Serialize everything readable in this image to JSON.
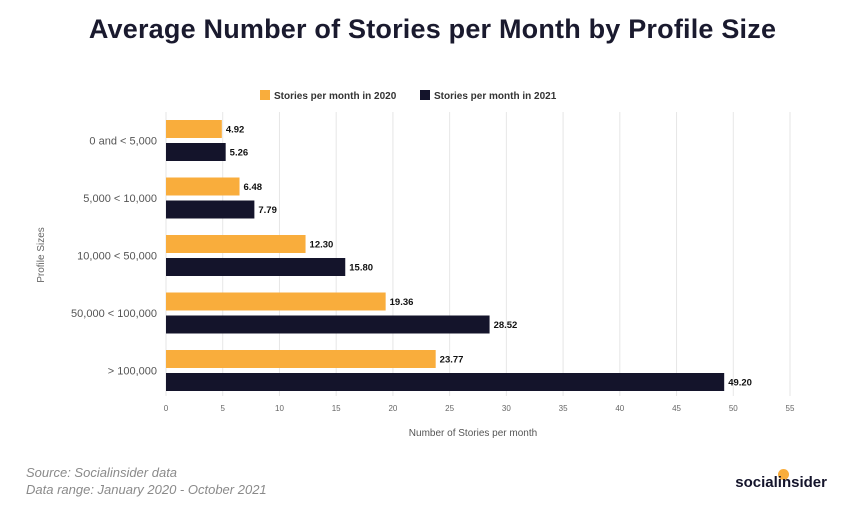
{
  "chart_data": {
    "type": "bar",
    "orientation": "horizontal",
    "title": "Average Number of Stories per Month by Profile Size",
    "xlabel": "Number of Stories per month",
    "ylabel": "Profile Sizes",
    "categories": [
      "0 and < 5,000",
      "5,000 < 10,000",
      "10,000 < 50,000",
      "50,000 < 100,000",
      "> 100,000"
    ],
    "series": [
      {
        "name": "Stories per month in 2020",
        "color": "#f9ad3c",
        "values": [
          4.92,
          6.48,
          12.3,
          19.36,
          23.77
        ],
        "labels": [
          "4.92",
          "6.48",
          "12.30",
          "19.36",
          "23.77"
        ]
      },
      {
        "name": "Stories per month in 2021",
        "color": "#14142b",
        "values": [
          5.26,
          7.79,
          15.8,
          28.52,
          49.2
        ],
        "labels": [
          "5.26",
          "7.79",
          "15.80",
          "28.52",
          "49.20"
        ]
      }
    ],
    "xlim": [
      0,
      55
    ],
    "xticks": [
      0,
      5,
      10,
      15,
      20,
      25,
      30,
      35,
      40,
      45,
      50,
      55
    ],
    "grid": true,
    "legend": "top-center"
  },
  "footer": {
    "source": "Source: Socialinsider data",
    "range": "Data range: January 2020 - October 2021"
  },
  "brand": {
    "name": "socialinsider",
    "dot_color": "#f9ad3c"
  }
}
